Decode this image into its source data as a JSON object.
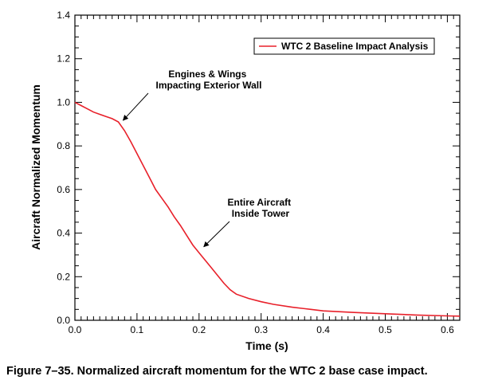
{
  "caption": "Figure 7–35.  Normalized aircraft momentum for the WTC 2 base case impact.",
  "chart_data": {
    "type": "line",
    "xlabel": "Time  (s)",
    "ylabel": "Aircraft Normalized Momentum",
    "xlim": [
      0,
      0.62
    ],
    "ylim": [
      0,
      1.4
    ],
    "x_ticks": [
      "0.0",
      "0.1",
      "0.2",
      "0.3",
      "0.4",
      "0.5",
      "0.6"
    ],
    "y_ticks": [
      "0.0",
      "0.2",
      "0.4",
      "0.6",
      "0.8",
      "1.0",
      "1.2",
      "1.4"
    ],
    "grid": false,
    "legend": "top-right",
    "series": [
      {
        "name": "WTC 2 Baseline Impact Analysis",
        "color": "#e8202a",
        "x": [
          0,
          0.01,
          0.02,
          0.03,
          0.04,
          0.05,
          0.06,
          0.07,
          0.08,
          0.09,
          0.1,
          0.11,
          0.12,
          0.13,
          0.14,
          0.15,
          0.16,
          0.17,
          0.18,
          0.19,
          0.2,
          0.21,
          0.22,
          0.23,
          0.24,
          0.25,
          0.26,
          0.28,
          0.3,
          0.32,
          0.35,
          0.38,
          0.4,
          0.45,
          0.5,
          0.55,
          0.6,
          0.62
        ],
        "y": [
          1.0,
          0.985,
          0.97,
          0.955,
          0.945,
          0.935,
          0.925,
          0.91,
          0.87,
          0.82,
          0.765,
          0.71,
          0.655,
          0.6,
          0.56,
          0.52,
          0.475,
          0.435,
          0.39,
          0.345,
          0.31,
          0.275,
          0.24,
          0.205,
          0.17,
          0.14,
          0.12,
          0.1,
          0.085,
          0.073,
          0.06,
          0.05,
          0.043,
          0.036,
          0.03,
          0.024,
          0.02,
          0.019
        ]
      }
    ],
    "annotations": [
      {
        "lines": [
          "Engines & Wings",
          "Impacting Exterior Wall"
        ],
        "point": [
          0.075,
          0.91
        ]
      },
      {
        "lines": [
          "Entire Aircraft",
          "Inside Tower"
        ],
        "point": [
          0.205,
          0.33
        ]
      }
    ]
  }
}
